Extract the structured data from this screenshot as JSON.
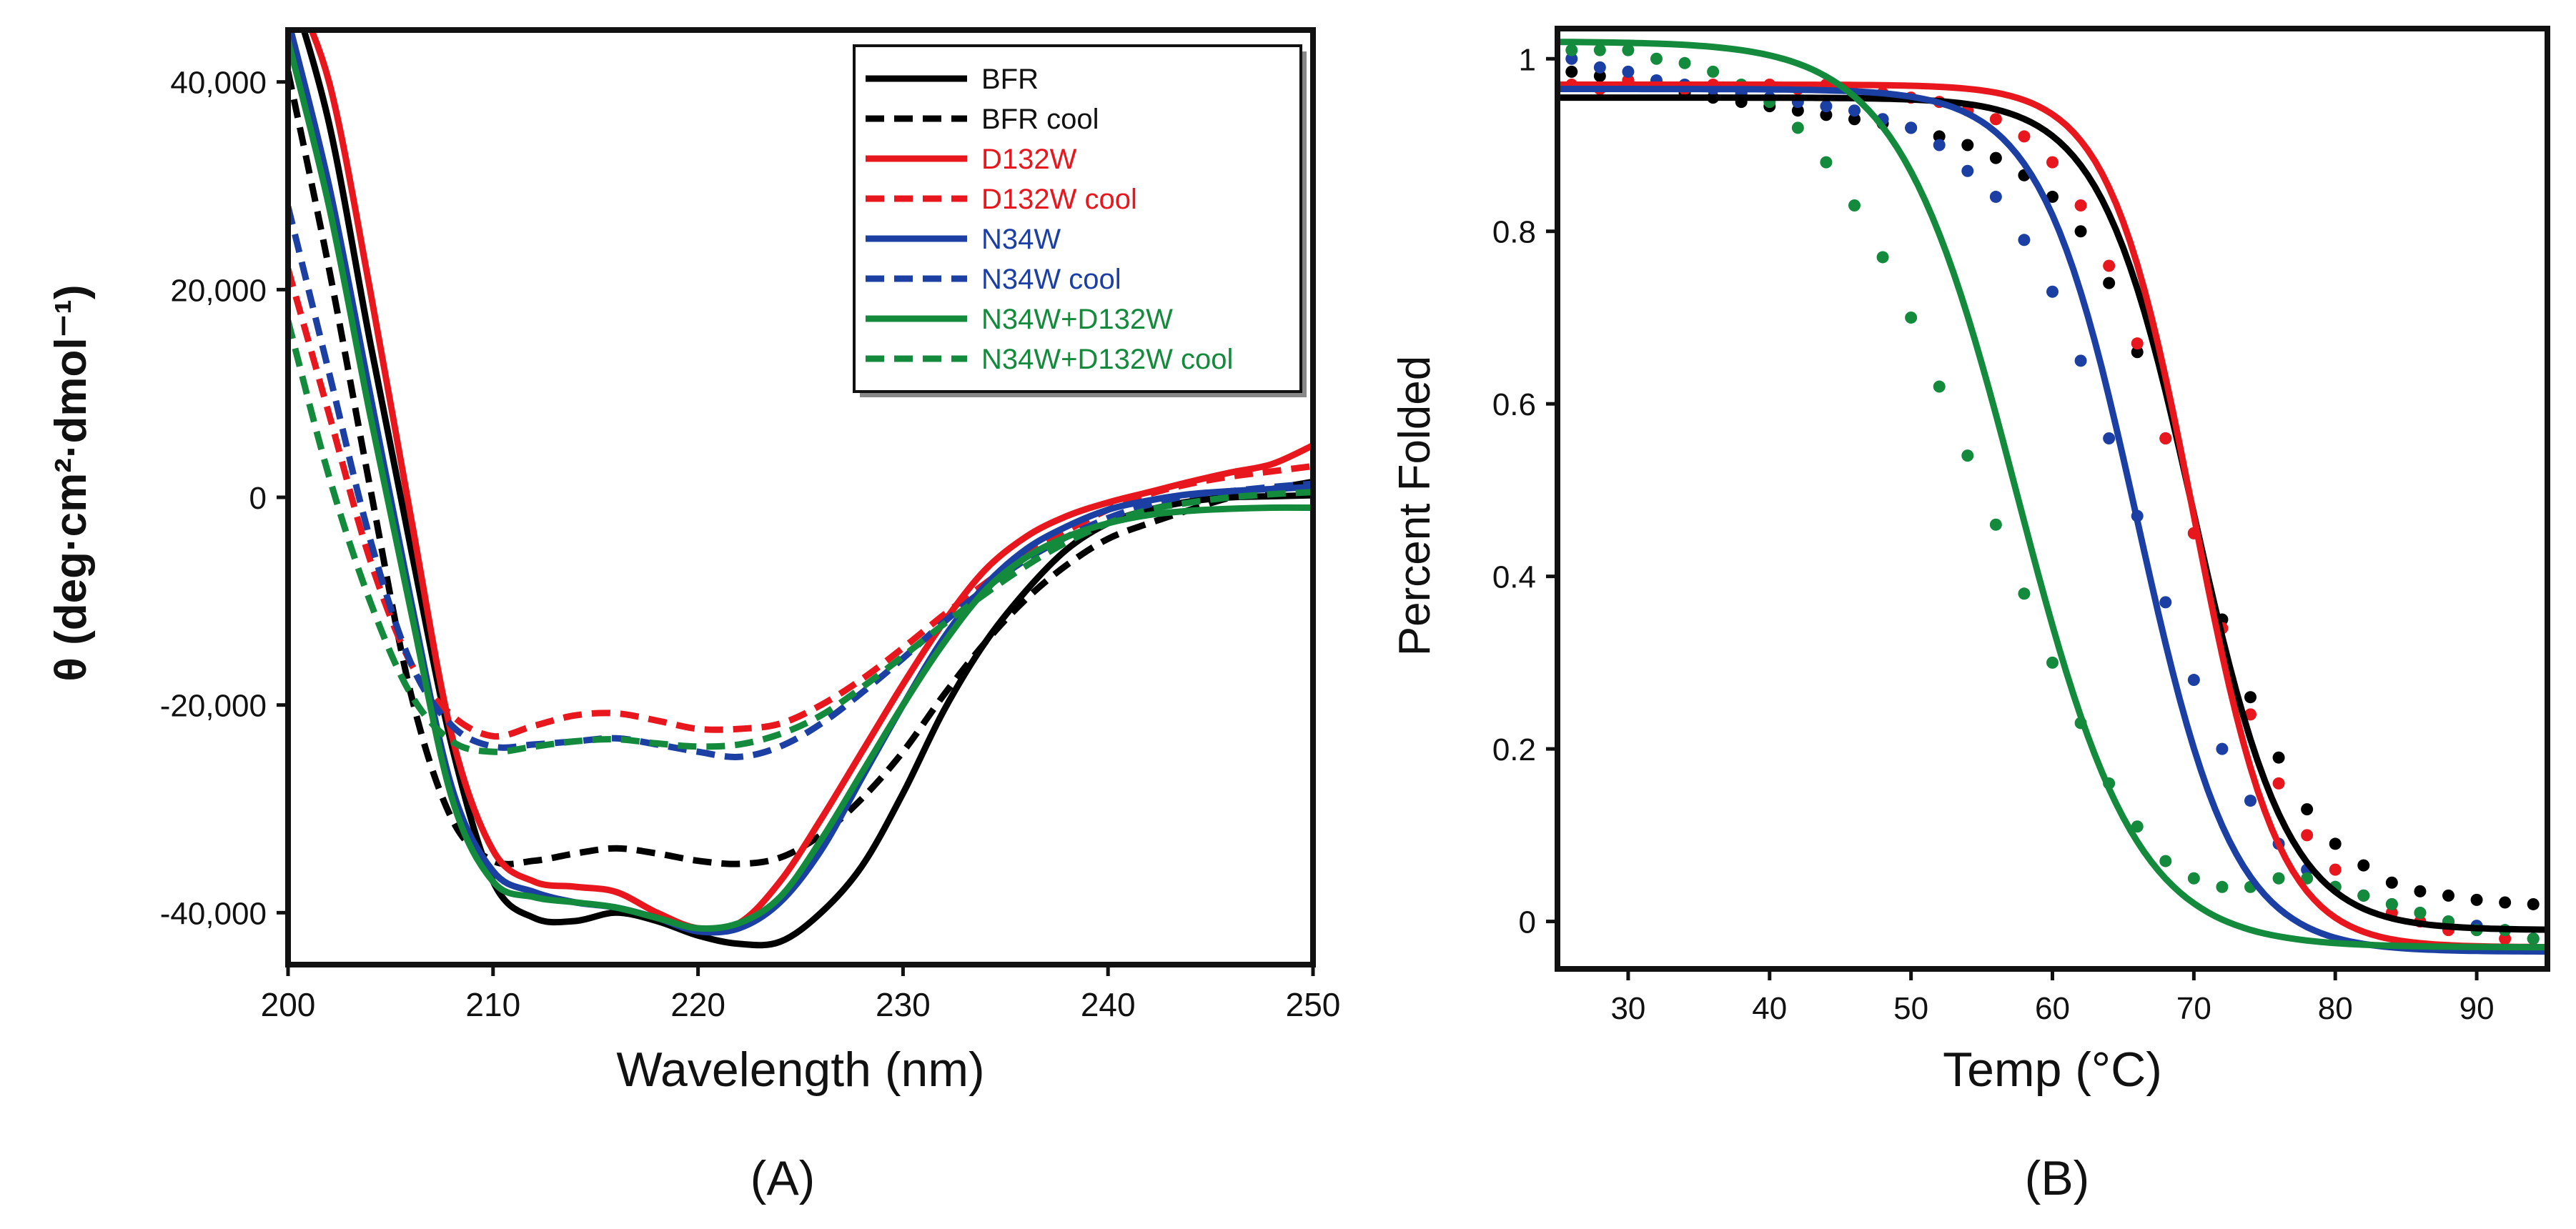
{
  "panels": {
    "a": {
      "label": "(A)"
    },
    "b": {
      "label": "(B)"
    }
  },
  "chart_data": [
    {
      "type": "line",
      "title": "",
      "xlabel": "Wavelength (nm)",
      "ylabel": "θ (deg·cm²·dmol⁻¹)",
      "xlim": [
        200,
        250
      ],
      "ylim": [
        -45000,
        45000
      ],
      "xticks": [
        "200",
        "210",
        "220",
        "230",
        "240",
        "250"
      ],
      "yticks": [
        "-40,000",
        "-20,000",
        "0",
        "20,000",
        "40,000"
      ],
      "legend_position": "top-right",
      "series": [
        {
          "name": "BFR",
          "color": "#000000",
          "dash": "solid",
          "x": [
            200,
            202,
            204,
            206,
            208,
            210,
            212,
            214,
            216,
            218,
            220,
            222,
            224,
            226,
            228,
            230,
            232,
            234,
            236,
            238,
            240,
            242,
            244,
            246,
            248,
            250
          ],
          "y": [
            50000,
            36000,
            15000,
            -5000,
            -24000,
            -37000,
            -40500,
            -40800,
            -40000,
            -40800,
            -42200,
            -43000,
            -42800,
            -40000,
            -35500,
            -28500,
            -20500,
            -14000,
            -9000,
            -5000,
            -2500,
            -1200,
            -400,
            0,
            100,
            200
          ]
        },
        {
          "name": "BFR cool",
          "color": "#000000",
          "dash": "dashed",
          "x": [
            200,
            202,
            204,
            206,
            208,
            210,
            212,
            214,
            216,
            218,
            220,
            222,
            224,
            226,
            228,
            230,
            232,
            234,
            236,
            238,
            240,
            242,
            244,
            246,
            248,
            250
          ],
          "y": [
            41000,
            22000,
            1000,
            -19000,
            -31000,
            -35000,
            -35000,
            -34300,
            -33800,
            -34300,
            -35000,
            -35300,
            -34700,
            -32500,
            -29000,
            -24500,
            -19000,
            -14000,
            -9800,
            -6500,
            -4000,
            -2500,
            -1200,
            0,
            800,
            1500
          ]
        },
        {
          "name": "D132W",
          "color": "#e8171d",
          "dash": "solid",
          "x": [
            200,
            202,
            204,
            206,
            208,
            210,
            212,
            214,
            216,
            218,
            220,
            222,
            224,
            226,
            228,
            230,
            232,
            234,
            236,
            238,
            240,
            242,
            244,
            246,
            248,
            250
          ],
          "y": [
            50000,
            40000,
            20000,
            -2000,
            -23000,
            -34000,
            -37000,
            -37500,
            -38000,
            -40000,
            -41500,
            -41000,
            -37000,
            -31000,
            -24500,
            -18000,
            -12000,
            -7000,
            -3800,
            -1800,
            -500,
            500,
            1500,
            2400,
            3200,
            5000
          ]
        },
        {
          "name": "D132W cool",
          "color": "#e8171d",
          "dash": "dashed",
          "x": [
            200,
            202,
            204,
            206,
            208,
            210,
            212,
            214,
            216,
            218,
            220,
            222,
            224,
            226,
            228,
            230,
            232,
            234,
            236,
            238,
            240,
            242,
            244,
            246,
            248,
            250
          ],
          "y": [
            22000,
            8000,
            -6000,
            -16000,
            -21000,
            -23000,
            -22000,
            -21000,
            -20800,
            -21500,
            -22300,
            -22300,
            -21800,
            -20000,
            -17500,
            -14500,
            -11300,
            -8300,
            -5500,
            -3200,
            -1200,
            300,
            1300,
            2000,
            2500,
            3000
          ]
        },
        {
          "name": "N34W",
          "color": "#1c3fa3",
          "dash": "solid",
          "x": [
            200,
            202,
            204,
            206,
            208,
            210,
            212,
            214,
            216,
            218,
            220,
            222,
            224,
            226,
            228,
            230,
            232,
            234,
            236,
            238,
            240,
            242,
            244,
            246,
            248,
            250
          ],
          "y": [
            46000,
            30000,
            10000,
            -10000,
            -28000,
            -36000,
            -38000,
            -39000,
            -39500,
            -40500,
            -41800,
            -41500,
            -39000,
            -34000,
            -27000,
            -20000,
            -13500,
            -8500,
            -5000,
            -2800,
            -1200,
            -300,
            300,
            600,
            800,
            1000
          ]
        },
        {
          "name": "N34W cool",
          "color": "#1c3fa3",
          "dash": "dashed",
          "x": [
            200,
            202,
            204,
            206,
            208,
            210,
            212,
            214,
            216,
            218,
            220,
            222,
            224,
            226,
            228,
            230,
            232,
            234,
            236,
            238,
            240,
            242,
            244,
            246,
            248,
            250
          ],
          "y": [
            28000,
            12000,
            -4000,
            -16000,
            -22000,
            -24000,
            -23800,
            -23500,
            -23200,
            -23800,
            -24500,
            -25000,
            -24000,
            -21800,
            -18800,
            -15500,
            -12000,
            -8800,
            -6000,
            -3800,
            -2000,
            -700,
            200,
            600,
            1000,
            1300
          ]
        },
        {
          "name": "N34W+D132W",
          "color": "#138a3c",
          "dash": "solid",
          "x": [
            200,
            202,
            204,
            206,
            208,
            210,
            212,
            214,
            216,
            218,
            220,
            222,
            224,
            226,
            228,
            230,
            232,
            234,
            236,
            238,
            240,
            242,
            244,
            246,
            248,
            250
          ],
          "y": [
            44000,
            28000,
            8000,
            -11000,
            -29000,
            -37000,
            -38500,
            -39000,
            -39500,
            -40500,
            -41500,
            -41000,
            -38500,
            -33000,
            -26500,
            -20000,
            -14000,
            -9000,
            -5800,
            -3800,
            -2500,
            -1700,
            -1300,
            -1100,
            -1000,
            -1000
          ]
        },
        {
          "name": "N34W+D132W cool",
          "color": "#138a3c",
          "dash": "dashed",
          "x": [
            200,
            202,
            204,
            206,
            208,
            210,
            212,
            214,
            216,
            218,
            220,
            222,
            224,
            226,
            228,
            230,
            232,
            234,
            236,
            238,
            240,
            242,
            244,
            246,
            248,
            250
          ],
          "y": [
            17000,
            2000,
            -10000,
            -19000,
            -23500,
            -24500,
            -24000,
            -23500,
            -23300,
            -23700,
            -24000,
            -23800,
            -22800,
            -21000,
            -18300,
            -15300,
            -12200,
            -9300,
            -6600,
            -4300,
            -2500,
            -1200,
            -500,
            0,
            300,
            500
          ]
        }
      ]
    },
    {
      "type": "scatter",
      "title": "",
      "xlabel": "Temp (°C)",
      "ylabel": "Percent Folded",
      "xlim": [
        25,
        95
      ],
      "ylim": [
        -0.055,
        1.035
      ],
      "xticks": [
        "30",
        "40",
        "50",
        "60",
        "70",
        "80",
        "90"
      ],
      "yticks": [
        "0",
        "0.2",
        "0.4",
        "0.6",
        "0.8",
        "1"
      ],
      "series": [
        {
          "name": "BFR",
          "color": "#000000",
          "fit": {
            "top": 0.955,
            "bottom": -0.01,
            "tm": 70.0,
            "width": 3.3
          },
          "x_points": [
            26,
            28,
            30,
            32,
            34,
            36,
            38,
            40,
            42,
            44,
            46,
            48,
            50,
            52,
            54,
            56,
            58,
            60,
            62,
            64,
            66,
            68,
            70,
            72,
            74,
            76,
            78,
            80,
            82,
            84,
            86,
            88,
            90,
            92,
            94
          ],
          "y_points": [
            0.985,
            0.98,
            0.975,
            0.97,
            0.96,
            0.955,
            0.95,
            0.945,
            0.94,
            0.935,
            0.93,
            0.925,
            0.92,
            0.91,
            0.9,
            0.885,
            0.865,
            0.84,
            0.8,
            0.74,
            0.66,
            0.56,
            0.45,
            0.35,
            0.26,
            0.19,
            0.13,
            0.09,
            0.065,
            0.045,
            0.035,
            0.03,
            0.025,
            0.022,
            0.02
          ]
        },
        {
          "name": "D132W",
          "color": "#e8171d",
          "fit": {
            "top": 0.97,
            "bottom": -0.03,
            "tm": 70.0,
            "width": 3.0
          },
          "x_points": [
            26,
            28,
            30,
            32,
            34,
            36,
            38,
            40,
            42,
            44,
            46,
            48,
            50,
            52,
            54,
            56,
            58,
            60,
            62,
            64,
            66,
            68,
            70,
            72,
            74,
            76,
            78,
            80,
            82,
            84,
            86,
            88,
            90,
            92,
            94
          ],
          "y_points": [
            0.97,
            0.965,
            0.975,
            0.97,
            0.965,
            0.97,
            0.96,
            0.97,
            0.965,
            0.97,
            0.96,
            0.96,
            0.955,
            0.95,
            0.94,
            0.93,
            0.91,
            0.88,
            0.83,
            0.76,
            0.67,
            0.56,
            0.45,
            0.34,
            0.24,
            0.16,
            0.1,
            0.06,
            0.03,
            0.01,
            0.0,
            -0.01,
            -0.01,
            -0.02,
            -0.02
          ]
        },
        {
          "name": "N34W",
          "color": "#1c3fa3",
          "fit": {
            "top": 0.965,
            "bottom": -0.035,
            "tm": 66.0,
            "width": 3.4
          },
          "x_points": [
            26,
            28,
            30,
            32,
            34,
            36,
            38,
            40,
            42,
            44,
            46,
            48,
            50,
            52,
            54,
            56,
            58,
            60,
            62,
            64,
            66,
            68,
            70,
            72,
            74,
            76,
            78,
            80,
            82,
            84,
            86,
            88,
            90,
            92,
            94
          ],
          "y_points": [
            1.0,
            0.99,
            0.985,
            0.975,
            0.97,
            0.965,
            0.96,
            0.955,
            0.95,
            0.945,
            0.94,
            0.93,
            0.92,
            0.9,
            0.87,
            0.84,
            0.79,
            0.73,
            0.65,
            0.56,
            0.47,
            0.37,
            0.28,
            0.2,
            0.14,
            0.09,
            0.06,
            0.04,
            0.03,
            0.02,
            0.01,
            0.0,
            -0.005,
            -0.01,
            -0.02
          ]
        },
        {
          "name": "N34W+D132W",
          "color": "#138a3c",
          "fit": {
            "top": 1.02,
            "bottom": -0.03,
            "tm": 57.5,
            "width": 4.2
          },
          "x_points": [
            26,
            28,
            30,
            32,
            34,
            36,
            38,
            40,
            42,
            44,
            46,
            48,
            50,
            52,
            54,
            56,
            58,
            60,
            62,
            64,
            66,
            68,
            70,
            72,
            74,
            76,
            78,
            80,
            82,
            84,
            86,
            88,
            90,
            92,
            94
          ],
          "y_points": [
            1.01,
            1.01,
            1.01,
            1.0,
            0.995,
            0.985,
            0.97,
            0.95,
            0.92,
            0.88,
            0.83,
            0.77,
            0.7,
            0.62,
            0.54,
            0.46,
            0.38,
            0.3,
            0.23,
            0.16,
            0.11,
            0.07,
            0.05,
            0.04,
            0.04,
            0.05,
            0.05,
            0.04,
            0.03,
            0.02,
            0.01,
            0.0,
            -0.01,
            -0.01,
            -0.02
          ]
        }
      ]
    }
  ]
}
